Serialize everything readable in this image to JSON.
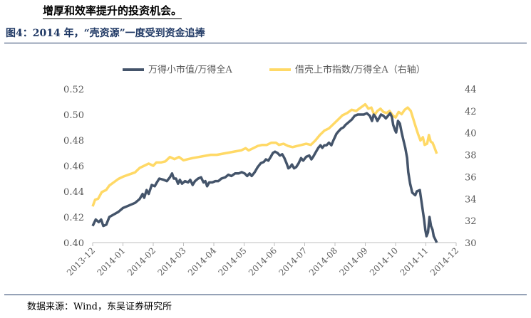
{
  "intro_text": "增厚和效率提升的投资机会。",
  "figure_title": "图4：2014 年，“壳资源”一度受到资金追捧",
  "source_text": "数据来源：Wind，东吴证券研究所",
  "chart_data": {
    "type": "line",
    "title": "",
    "x_tick_labels": [
      "2013-12",
      "2014-01",
      "2014-02",
      "2014-03",
      "2014-04",
      "2014-05",
      "2014-06",
      "2014-07",
      "2014-08",
      "2014-09",
      "2014-10",
      "2014-11",
      "2014-12"
    ],
    "y_left": {
      "ticks": [
        "0.40",
        "0.42",
        "0.44",
        "0.46",
        "0.48",
        "0.50",
        "0.52"
      ],
      "range": [
        0.4,
        0.52
      ]
    },
    "y_right": {
      "ticks": [
        "30",
        "32",
        "34",
        "36",
        "38",
        "40",
        "42",
        "44"
      ],
      "range": [
        30,
        44
      ]
    },
    "x_range": [
      0,
      12
    ],
    "legend_position": "top",
    "series": [
      {
        "name": "万得小市值/万得全A",
        "axis": "left",
        "color": "#44546a",
        "points": [
          [
            0.0,
            0.413
          ],
          [
            0.1,
            0.418
          ],
          [
            0.2,
            0.416
          ],
          [
            0.28,
            0.418
          ],
          [
            0.35,
            0.413
          ],
          [
            0.45,
            0.414
          ],
          [
            0.55,
            0.42
          ],
          [
            0.7,
            0.422
          ],
          [
            0.85,
            0.424
          ],
          [
            1.0,
            0.427
          ],
          [
            1.2,
            0.429
          ],
          [
            1.4,
            0.431
          ],
          [
            1.55,
            0.434
          ],
          [
            1.65,
            0.438
          ],
          [
            1.7,
            0.435
          ],
          [
            1.78,
            0.441
          ],
          [
            1.85,
            0.438
          ],
          [
            1.95,
            0.445
          ],
          [
            2.05,
            0.444
          ],
          [
            2.12,
            0.447
          ],
          [
            2.2,
            0.45
          ],
          [
            2.35,
            0.449
          ],
          [
            2.45,
            0.448
          ],
          [
            2.55,
            0.451
          ],
          [
            2.62,
            0.454
          ],
          [
            2.68,
            0.45
          ],
          [
            2.75,
            0.45
          ],
          [
            2.82,
            0.446
          ],
          [
            2.88,
            0.449
          ],
          [
            2.95,
            0.446
          ],
          [
            3.05,
            0.448
          ],
          [
            3.15,
            0.447
          ],
          [
            3.22,
            0.449
          ],
          [
            3.3,
            0.445
          ],
          [
            3.38,
            0.448
          ],
          [
            3.48,
            0.45
          ],
          [
            3.58,
            0.451
          ],
          [
            3.66,
            0.447
          ],
          [
            3.72,
            0.448
          ],
          [
            3.78,
            0.444
          ],
          [
            3.85,
            0.447
          ],
          [
            3.95,
            0.447
          ],
          [
            4.05,
            0.448
          ],
          [
            4.15,
            0.448
          ],
          [
            4.25,
            0.45
          ],
          [
            4.38,
            0.451
          ],
          [
            4.48,
            0.453
          ],
          [
            4.58,
            0.452
          ],
          [
            4.7,
            0.454
          ],
          [
            4.82,
            0.454
          ],
          [
            4.92,
            0.455
          ],
          [
            5.02,
            0.454
          ],
          [
            5.1,
            0.452
          ],
          [
            5.18,
            0.454
          ],
          [
            5.25,
            0.452
          ],
          [
            5.35,
            0.455
          ],
          [
            5.45,
            0.459
          ],
          [
            5.55,
            0.462
          ],
          [
            5.65,
            0.463
          ],
          [
            5.72,
            0.465
          ],
          [
            5.8,
            0.464
          ],
          [
            5.88,
            0.467
          ],
          [
            5.95,
            0.47
          ],
          [
            6.02,
            0.471
          ],
          [
            6.1,
            0.47
          ],
          [
            6.18,
            0.468
          ],
          [
            6.26,
            0.469
          ],
          [
            6.33,
            0.466
          ],
          [
            6.4,
            0.462
          ],
          [
            6.46,
            0.458
          ],
          [
            6.52,
            0.459
          ],
          [
            6.58,
            0.461
          ],
          [
            6.65,
            0.458
          ],
          [
            6.72,
            0.459
          ],
          [
            6.8,
            0.462
          ],
          [
            6.88,
            0.466
          ],
          [
            6.95,
            0.464
          ],
          [
            7.05,
            0.467
          ],
          [
            7.15,
            0.468
          ],
          [
            7.22,
            0.465
          ],
          [
            7.28,
            0.467
          ],
          [
            7.35,
            0.47
          ],
          [
            7.45,
            0.474
          ],
          [
            7.52,
            0.476
          ],
          [
            7.58,
            0.474
          ],
          [
            7.65,
            0.476
          ],
          [
            7.72,
            0.476
          ],
          [
            7.8,
            0.478
          ],
          [
            7.88,
            0.476
          ],
          [
            7.95,
            0.48
          ],
          [
            8.05,
            0.485
          ],
          [
            8.12,
            0.487
          ],
          [
            8.2,
            0.489
          ],
          [
            8.28,
            0.49
          ],
          [
            8.35,
            0.492
          ],
          [
            8.45,
            0.494
          ],
          [
            8.55,
            0.496
          ],
          [
            8.65,
            0.499
          ],
          [
            8.75,
            0.5
          ],
          [
            8.85,
            0.5
          ],
          [
            8.95,
            0.5
          ],
          [
            9.05,
            0.501
          ],
          [
            9.15,
            0.499
          ],
          [
            9.22,
            0.495
          ],
          [
            9.28,
            0.5
          ],
          [
            9.34,
            0.498
          ],
          [
            9.4,
            0.495
          ],
          [
            9.45,
            0.497
          ],
          [
            9.52,
            0.5
          ],
          [
            9.6,
            0.499
          ],
          [
            9.68,
            0.497
          ],
          [
            9.75,
            0.499
          ],
          [
            9.82,
            0.501
          ],
          [
            9.88,
            0.498
          ],
          [
            9.92,
            0.492
          ],
          [
            9.98,
            0.488
          ],
          [
            10.02,
            0.486
          ],
          [
            10.08,
            0.495
          ],
          [
            10.14,
            0.493
          ],
          [
            10.2,
            0.486
          ],
          [
            10.26,
            0.48
          ],
          [
            10.32,
            0.474
          ],
          [
            10.38,
            0.466
          ],
          [
            10.42,
            0.455
          ],
          [
            10.48,
            0.446
          ],
          [
            10.55,
            0.439
          ],
          [
            10.65,
            0.437
          ],
          [
            10.7,
            0.44
          ],
          [
            10.8,
            0.441
          ],
          [
            10.88,
            0.428
          ],
          [
            10.94,
            0.418
          ],
          [
            10.98,
            0.41
          ],
          [
            11.02,
            0.405
          ],
          [
            11.07,
            0.408
          ],
          [
            11.12,
            0.42
          ],
          [
            11.17,
            0.413
          ],
          [
            11.22,
            0.41
          ],
          [
            11.26,
            0.405
          ],
          [
            11.3,
            0.403
          ],
          [
            11.36,
            0.4
          ]
        ]
      },
      {
        "name": "借壳上市指数/万得全A（右轴）",
        "axis": "right",
        "color": "#ffd966",
        "points": [
          [
            0.0,
            33.3
          ],
          [
            0.08,
            33.9
          ],
          [
            0.18,
            34.0
          ],
          [
            0.3,
            34.6
          ],
          [
            0.45,
            34.8
          ],
          [
            0.55,
            35.2
          ],
          [
            0.7,
            35.5
          ],
          [
            0.85,
            35.8
          ],
          [
            1.0,
            36.0
          ],
          [
            1.2,
            36.2
          ],
          [
            1.4,
            36.4
          ],
          [
            1.55,
            36.8
          ],
          [
            1.7,
            37.0
          ],
          [
            1.85,
            37.2
          ],
          [
            2.0,
            37.0
          ],
          [
            2.1,
            37.3
          ],
          [
            2.25,
            37.3
          ],
          [
            2.4,
            37.4
          ],
          [
            2.55,
            37.8
          ],
          [
            2.7,
            37.6
          ],
          [
            2.85,
            37.8
          ],
          [
            3.0,
            37.5
          ],
          [
            3.15,
            37.6
          ],
          [
            3.3,
            37.7
          ],
          [
            3.5,
            37.8
          ],
          [
            3.7,
            37.9
          ],
          [
            3.9,
            38.0
          ],
          [
            4.1,
            38.0
          ],
          [
            4.3,
            38.1
          ],
          [
            4.5,
            38.2
          ],
          [
            4.7,
            38.3
          ],
          [
            4.9,
            38.4
          ],
          [
            5.05,
            38.6
          ],
          [
            5.15,
            38.4
          ],
          [
            5.3,
            38.6
          ],
          [
            5.45,
            38.8
          ],
          [
            5.6,
            38.9
          ],
          [
            5.75,
            38.9
          ],
          [
            5.9,
            39.1
          ],
          [
            6.05,
            39.1
          ],
          [
            6.15,
            38.9
          ],
          [
            6.3,
            39.0
          ],
          [
            6.45,
            38.8
          ],
          [
            6.6,
            38.7
          ],
          [
            6.75,
            38.8
          ],
          [
            6.9,
            38.9
          ],
          [
            7.05,
            39.0
          ],
          [
            7.2,
            38.9
          ],
          [
            7.35,
            39.3
          ],
          [
            7.5,
            39.8
          ],
          [
            7.65,
            40.2
          ],
          [
            7.8,
            40.4
          ],
          [
            7.95,
            40.8
          ],
          [
            8.1,
            41.2
          ],
          [
            8.25,
            41.6
          ],
          [
            8.4,
            41.8
          ],
          [
            8.55,
            42.1
          ],
          [
            8.7,
            42.0
          ],
          [
            8.85,
            42.3
          ],
          [
            9.0,
            42.6
          ],
          [
            9.1,
            42.2
          ],
          [
            9.2,
            42.3
          ],
          [
            9.3,
            41.6
          ],
          [
            9.4,
            42.0
          ],
          [
            9.5,
            42.2
          ],
          [
            9.6,
            41.9
          ],
          [
            9.7,
            41.8
          ],
          [
            9.8,
            42.0
          ],
          [
            9.9,
            41.6
          ],
          [
            10.0,
            41.4
          ],
          [
            10.1,
            41.9
          ],
          [
            10.2,
            41.7
          ],
          [
            10.3,
            42.1
          ],
          [
            10.4,
            42.3
          ],
          [
            10.5,
            42.0
          ],
          [
            10.58,
            41.3
          ],
          [
            10.66,
            40.6
          ],
          [
            10.74,
            39.9
          ],
          [
            10.82,
            39.3
          ],
          [
            10.9,
            39.6
          ],
          [
            10.96,
            38.9
          ],
          [
            11.04,
            39.0
          ],
          [
            11.1,
            39.8
          ],
          [
            11.16,
            39.2
          ],
          [
            11.22,
            39.1
          ],
          [
            11.28,
            38.7
          ],
          [
            11.36,
            38.1
          ]
        ]
      }
    ]
  }
}
